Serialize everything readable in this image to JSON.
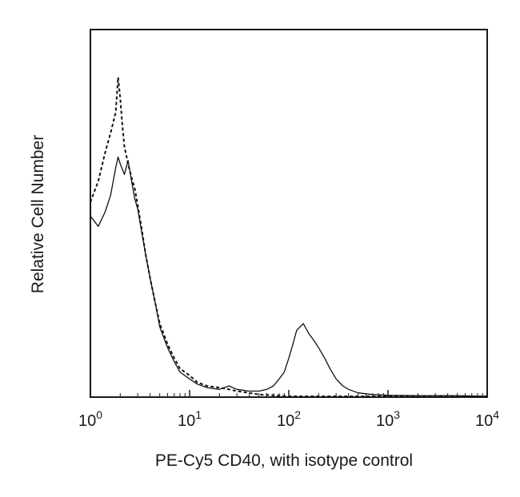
{
  "chart_data": {
    "type": "line",
    "title": "",
    "xlabel": "PE-Cy5 CD40, with isotype control",
    "ylabel": "Relative Cell Number",
    "xscale": "log",
    "xlim": [
      1,
      10000
    ],
    "ylim": [
      0,
      100
    ],
    "grid": false,
    "legend": "none",
    "xticks": [
      {
        "value": 1,
        "base": "10",
        "exp": "0"
      },
      {
        "value": 10,
        "base": "10",
        "exp": "1"
      },
      {
        "value": 100,
        "base": "10",
        "exp": "2"
      },
      {
        "value": 1000,
        "base": "10",
        "exp": "3"
      },
      {
        "value": 10000,
        "base": "10",
        "exp": "4"
      }
    ],
    "series": [
      {
        "style": "solid",
        "color": "#111111",
        "x": [
          1.0,
          1.2,
          1.4,
          1.6,
          1.8,
          1.9,
          2.0,
          2.2,
          2.4,
          2.6,
          2.8,
          3.0,
          3.3,
          3.6,
          4.0,
          4.5,
          5.0,
          6.0,
          7.0,
          8.0,
          10,
          12,
          15,
          20,
          25,
          30,
          40,
          50,
          60,
          70,
          80,
          90,
          100,
          110,
          120,
          140,
          160,
          180,
          200,
          230,
          260,
          300,
          350,
          400,
          500,
          700,
          1000,
          2000,
          5000,
          10000
        ],
        "y": [
          52,
          49,
          53,
          58,
          66,
          69,
          67,
          64,
          68,
          62,
          57,
          54,
          47,
          41,
          34,
          27,
          20,
          14,
          10,
          7,
          5,
          3.5,
          2.5,
          2,
          3,
          2,
          1.5,
          1.5,
          2,
          3,
          5,
          7,
          11,
          15,
          19,
          21,
          18,
          16,
          14,
          11,
          8,
          5,
          3,
          2,
          1,
          0.5,
          0.3,
          0.2,
          0.2,
          0
        ]
      },
      {
        "style": "dashed",
        "color": "#111111",
        "x": [
          1.0,
          1.2,
          1.4,
          1.6,
          1.8,
          1.9,
          2.0,
          2.1,
          2.2,
          2.4,
          2.6,
          2.8,
          3.0,
          3.3,
          3.6,
          4.0,
          4.5,
          5.0,
          6.0,
          7.0,
          8.0,
          10,
          12,
          15,
          20,
          25,
          30,
          40,
          50,
          70,
          100,
          200,
          1000,
          10000
        ],
        "y": [
          56,
          62,
          70,
          76,
          82,
          92,
          86,
          78,
          72,
          67,
          63,
          60,
          55,
          48,
          41,
          34,
          27,
          21,
          15,
          11,
          8,
          6,
          4,
          3,
          2.5,
          2,
          1.5,
          1,
          0.5,
          0.3,
          0,
          0,
          0,
          0
        ]
      }
    ]
  }
}
